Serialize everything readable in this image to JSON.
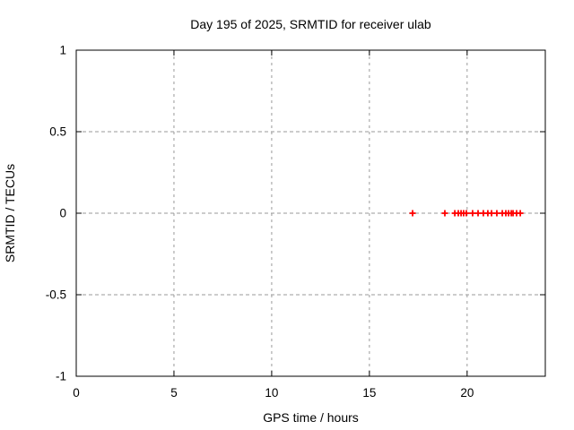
{
  "chart_data": {
    "type": "scatter",
    "title": "Day 195 of 2025, SRMTID for receiver ulab",
    "xlabel": "GPS time / hours",
    "ylabel": "SRMTID / TECUs",
    "xlim": [
      0,
      24
    ],
    "ylim": [
      -1,
      1
    ],
    "xticks": [
      0,
      5,
      10,
      15,
      20
    ],
    "yticks": [
      1,
      0.5,
      0,
      -0.5,
      -1
    ],
    "grid": true,
    "legend": "none",
    "colors": {
      "marker": "#ff0000",
      "grid": "#9a9a9a",
      "axis": "#000000",
      "background": "#ffffff"
    },
    "marker_style": "plus",
    "series": [
      {
        "name": "SRMTID",
        "x": [
          17.21,
          18.86,
          19.37,
          19.55,
          19.69,
          19.82,
          19.96,
          20.28,
          20.56,
          20.83,
          21.06,
          21.25,
          21.52,
          21.8,
          21.98,
          22.12,
          22.26,
          22.35,
          22.53,
          22.72
        ],
        "y": [
          0,
          0,
          0,
          0,
          0,
          0,
          0,
          0,
          0,
          0,
          0,
          0,
          0,
          0,
          0,
          0,
          0,
          0,
          0,
          0
        ]
      }
    ]
  }
}
